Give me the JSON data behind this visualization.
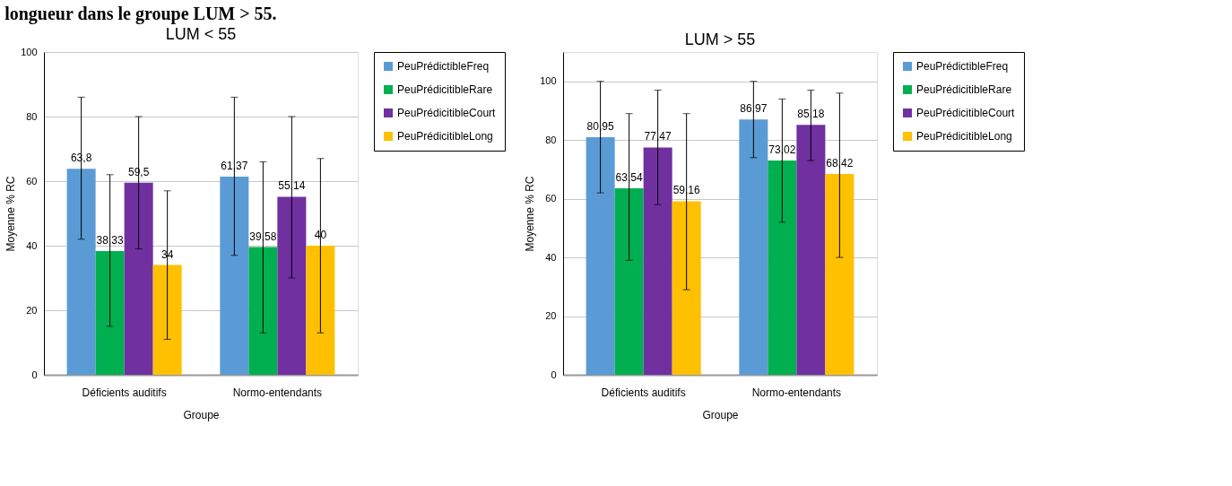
{
  "chart_data": [
    {
      "type": "bar",
      "title": "LUM < 55",
      "xlabel": "Groupe",
      "ylabel": "Moyenne % RC",
      "annotations": [
        "longueur dans le groupe LUM > 55."
      ],
      "categories": [
        "Déficients auditifs",
        "Normo-entendants"
      ],
      "ylim": [
        0,
        100
      ],
      "yticks": [
        0,
        20,
        40,
        60,
        80,
        100
      ],
      "grid": "y",
      "legend": "right",
      "series": [
        {
          "name": "PeuPrédictibleFreq",
          "color": "#5b9bd5",
          "values": [
            63.8,
            61.37
          ],
          "value_labels": [
            "63,8",
            "61,37"
          ],
          "errors": [
            [
              42,
              86
            ],
            [
              37,
              86
            ]
          ]
        },
        {
          "name": "PeuPrédicitibleRare",
          "color": "#00b050",
          "values": [
            38.33,
            39.58
          ],
          "value_labels": [
            "38,33",
            "39,58"
          ],
          "errors": [
            [
              15,
              62
            ],
            [
              13,
              66
            ]
          ]
        },
        {
          "name": "PeuPrédicitibleCourt",
          "color": "#7030a0",
          "values": [
            59.5,
            55.14
          ],
          "value_labels": [
            "59,5",
            "55,14"
          ],
          "errors": [
            [
              39,
              80
            ],
            [
              30,
              80
            ]
          ]
        },
        {
          "name": "PeuPrédicitibleLong",
          "color": "#ffc000",
          "values": [
            34,
            40
          ],
          "value_labels": [
            "34",
            "40"
          ],
          "errors": [
            [
              11,
              57
            ],
            [
              13,
              67
            ]
          ]
        }
      ]
    },
    {
      "type": "bar",
      "title": "LUM > 55",
      "xlabel": "Groupe",
      "ylabel": "Moyenne % RC",
      "categories": [
        "Déficients auditifs",
        "Normo-entendants"
      ],
      "ylim": [
        0,
        110
      ],
      "yticks": [
        0,
        20,
        40,
        60,
        80,
        100
      ],
      "grid": "y",
      "legend": "right",
      "series": [
        {
          "name": "PeuPrédictibleFreq",
          "color": "#5b9bd5",
          "values": [
            80.95,
            86.97
          ],
          "value_labels": [
            "80,95",
            "86,97"
          ],
          "errors": [
            [
              62,
              100
            ],
            [
              74,
              100
            ]
          ]
        },
        {
          "name": "PeuPrédicitibleRare",
          "color": "#00b050",
          "values": [
            63.54,
            73.02
          ],
          "value_labels": [
            "63,54",
            "73,02"
          ],
          "errors": [
            [
              39,
              89
            ],
            [
              52,
              94
            ]
          ]
        },
        {
          "name": "PeuPrédicitibleCourt",
          "color": "#7030a0",
          "values": [
            77.47,
            85.18
          ],
          "value_labels": [
            "77,47",
            "85,18"
          ],
          "errors": [
            [
              58,
              97
            ],
            [
              73,
              97
            ]
          ]
        },
        {
          "name": "PeuPrédicitibleLong",
          "color": "#ffc000",
          "values": [
            59.16,
            68.42
          ],
          "value_labels": [
            "59,16",
            "68,42"
          ],
          "errors": [
            [
              29,
              89
            ],
            [
              40,
              96
            ]
          ]
        }
      ]
    }
  ]
}
